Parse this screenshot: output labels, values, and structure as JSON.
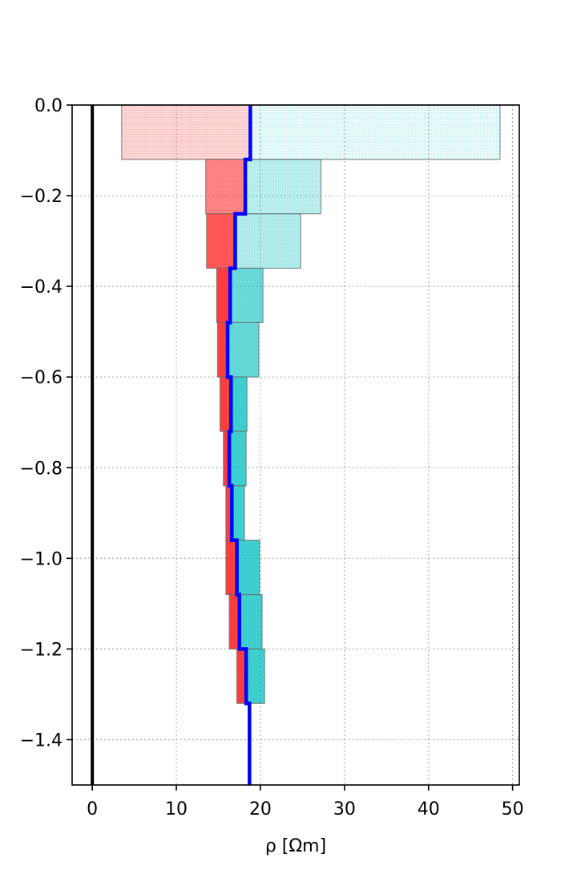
{
  "chart_data": {
    "type": "area",
    "xlabel": "ρ [Ωm]",
    "xlim": [
      -2.4,
      50.8
    ],
    "ylim": [
      -1.5,
      0.0
    ],
    "x_ticks": [
      0,
      10,
      20,
      30,
      40,
      50
    ],
    "y_ticks": [
      0.0,
      -0.2,
      -0.4,
      -0.6,
      -0.8,
      -1.0,
      -1.2,
      -1.4
    ],
    "x_tick_labels": [
      "0",
      "10",
      "20",
      "30",
      "40",
      "50"
    ],
    "y_tick_labels": [
      "0.0",
      "−0.2",
      "−0.4",
      "−0.6",
      "−0.8",
      "−1.0",
      "−1.2",
      "−1.4"
    ],
    "grid": true,
    "colors": {
      "below_mean": "#ff0000",
      "above_mean": "#00bfbf",
      "mean_profile": "#0000ff",
      "zero_line": "#000000",
      "grid": "#b0b0b0",
      "box_edge": "#707070"
    },
    "layers": [
      {
        "top": 0.0,
        "bottom": -0.12,
        "lower": 3.5,
        "mean": 18.8,
        "upper": 48.5
      },
      {
        "top": -0.12,
        "bottom": -0.24,
        "lower": 13.5,
        "mean": 18.2,
        "upper": 27.2
      },
      {
        "top": -0.24,
        "bottom": -0.36,
        "lower": 13.6,
        "mean": 17.0,
        "upper": 24.8
      },
      {
        "top": -0.36,
        "bottom": -0.48,
        "lower": 14.8,
        "mean": 16.4,
        "upper": 20.3
      },
      {
        "top": -0.48,
        "bottom": -0.6,
        "lower": 14.9,
        "mean": 16.1,
        "upper": 19.8
      },
      {
        "top": -0.6,
        "bottom": -0.72,
        "lower": 15.2,
        "mean": 16.5,
        "upper": 18.4
      },
      {
        "top": -0.72,
        "bottom": -0.84,
        "lower": 15.6,
        "mean": 16.3,
        "upper": 18.3
      },
      {
        "top": -0.84,
        "bottom": -0.96,
        "lower": 15.9,
        "mean": 16.6,
        "upper": 18.1
      },
      {
        "top": -0.96,
        "bottom": -1.08,
        "lower": 15.9,
        "mean": 17.2,
        "upper": 19.9
      },
      {
        "top": -1.08,
        "bottom": -1.2,
        "lower": 16.3,
        "mean": 17.5,
        "upper": 20.2
      },
      {
        "top": -1.2,
        "bottom": -1.32,
        "lower": 17.2,
        "mean": 18.3,
        "upper": 20.5
      },
      {
        "top": -1.32,
        "bottom": -1.5,
        "lower": 18.7,
        "mean": 18.7,
        "upper": 18.7
      }
    ]
  }
}
